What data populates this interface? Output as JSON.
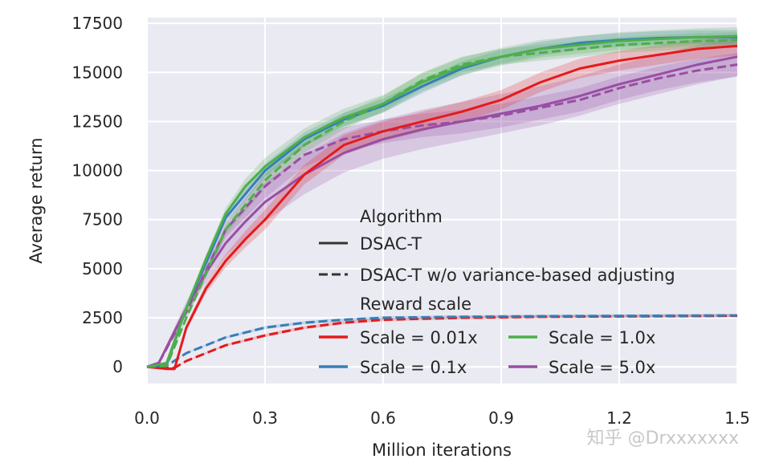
{
  "chart_data": {
    "type": "line",
    "title": "",
    "xlabel": "Million iterations",
    "ylabel": "Average return",
    "xlim": [
      0,
      1.5
    ],
    "ylim": [
      -850,
      17790
    ],
    "xticks": [
      "0.0",
      "0.3",
      "0.6",
      "0.9",
      "1.2",
      "1.5"
    ],
    "yticks": [
      "0",
      "2500",
      "5000",
      "7500",
      "10000",
      "12500",
      "15000",
      "17500"
    ],
    "grid": true,
    "background": "#eaeaf2",
    "legend": {
      "placement": "bottom-right",
      "algorithm_title": "Algorithm",
      "algorithms": [
        {
          "name": "DSAC-T",
          "style": "solid"
        },
        {
          "name": "DSAC-T w/o variance-based adjusting",
          "style": "dashed"
        }
      ],
      "scale_title": "Reward scale",
      "scales": [
        {
          "name": "Scale = 0.01x",
          "color": "#e41a1c"
        },
        {
          "name": "Scale = 1.0x",
          "color": "#4daf4a"
        },
        {
          "name": "Scale = 0.1x",
          "color": "#377eb8"
        },
        {
          "name": "Scale = 5.0x",
          "color": "#984ea3"
        }
      ]
    },
    "series": [
      {
        "scale": "Scale = 0.01x",
        "algorithm": "DSAC-T w/o variance-based adjusting",
        "color": "#e41a1c",
        "style": "dashed",
        "band": 80,
        "x": [
          0,
          0.05,
          0.07,
          0.1,
          0.2,
          0.3,
          0.4,
          0.5,
          0.6,
          0.8,
          1.0,
          1.5
        ],
        "y": [
          0,
          -50,
          -50,
          300,
          1100,
          1600,
          2000,
          2250,
          2400,
          2500,
          2550,
          2600
        ]
      },
      {
        "scale": "Scale = 0.1x",
        "algorithm": "DSAC-T w/o variance-based adjusting",
        "color": "#377eb8",
        "style": "dashed",
        "band": 80,
        "x": [
          0,
          0.05,
          0.1,
          0.2,
          0.3,
          0.4,
          0.5,
          0.6,
          0.8,
          1.0,
          1.5
        ],
        "y": [
          0,
          50,
          700,
          1500,
          2000,
          2250,
          2400,
          2500,
          2550,
          2580,
          2620
        ]
      },
      {
        "scale": "Scale = 5.0x",
        "algorithm": "DSAC-T",
        "color": "#984ea3",
        "style": "solid",
        "band": 1000,
        "x": [
          0,
          0.03,
          0.1,
          0.15,
          0.2,
          0.25,
          0.3,
          0.4,
          0.5,
          0.6,
          0.7,
          0.8,
          0.9,
          1.0,
          1.1,
          1.2,
          1.3,
          1.4,
          1.5
        ],
        "y": [
          0,
          200,
          3000,
          4800,
          6300,
          7400,
          8400,
          9800,
          10900,
          11600,
          12100,
          12500,
          12900,
          13300,
          13800,
          14400,
          14900,
          15400,
          15800
        ]
      },
      {
        "scale": "Scale = 5.0x",
        "algorithm": "DSAC-T w/o variance-based adjusting",
        "color": "#984ea3",
        "style": "dashed",
        "band": 600,
        "x": [
          0,
          0.03,
          0.1,
          0.2,
          0.3,
          0.4,
          0.5,
          0.6,
          0.7,
          0.8,
          0.9,
          1.0,
          1.1,
          1.2,
          1.3,
          1.4,
          1.5
        ],
        "y": [
          0,
          200,
          2800,
          7000,
          9200,
          10800,
          11600,
          12000,
          12300,
          12500,
          12800,
          13200,
          13600,
          14200,
          14700,
          15100,
          15400
        ]
      },
      {
        "scale": "Scale = 0.01x",
        "algorithm": "DSAC-T",
        "color": "#e41a1c",
        "style": "solid",
        "band": 500,
        "x": [
          0,
          0.05,
          0.07,
          0.1,
          0.15,
          0.2,
          0.25,
          0.3,
          0.4,
          0.5,
          0.6,
          0.7,
          0.8,
          0.9,
          1.0,
          1.1,
          1.2,
          1.3,
          1.4,
          1.5
        ],
        "y": [
          0,
          -100,
          -100,
          2000,
          4000,
          5400,
          6500,
          7500,
          9800,
          11300,
          12000,
          12500,
          13000,
          13600,
          14500,
          15200,
          15600,
          15900,
          16200,
          16350
        ]
      },
      {
        "scale": "Scale = 0.1x",
        "algorithm": "DSAC-T",
        "color": "#377eb8",
        "style": "solid",
        "band": 350,
        "x": [
          0,
          0.05,
          0.1,
          0.2,
          0.3,
          0.4,
          0.5,
          0.6,
          0.7,
          0.8,
          0.9,
          1.0,
          1.1,
          1.2,
          1.3,
          1.4,
          1.5
        ],
        "y": [
          0,
          100,
          3000,
          7600,
          10000,
          11600,
          12600,
          13300,
          14300,
          15200,
          15800,
          16200,
          16500,
          16650,
          16750,
          16800,
          16800
        ]
      },
      {
        "scale": "Scale = 1.0x",
        "algorithm": "DSAC-T w/o variance-based adjusting",
        "color": "#4daf4a",
        "style": "dashed",
        "band": 400,
        "x": [
          0,
          0.05,
          0.1,
          0.2,
          0.3,
          0.4,
          0.5,
          0.6,
          0.7,
          0.8,
          0.9,
          1.0,
          1.1,
          1.2,
          1.3,
          1.4,
          1.5
        ],
        "y": [
          0,
          50,
          2500,
          7000,
          9500,
          11300,
          12500,
          13400,
          14600,
          15400,
          15800,
          16000,
          16200,
          16400,
          16500,
          16600,
          16650
        ]
      },
      {
        "scale": "Scale = 1.0x",
        "algorithm": "DSAC-T",
        "color": "#4daf4a",
        "style": "solid",
        "band": 450,
        "x": [
          0,
          0.05,
          0.1,
          0.15,
          0.2,
          0.25,
          0.3,
          0.4,
          0.5,
          0.6,
          0.7,
          0.8,
          0.9,
          1.0,
          1.1,
          1.2,
          1.3,
          1.4,
          1.5
        ],
        "y": [
          0,
          200,
          3000,
          5500,
          7800,
          9200,
          10200,
          11700,
          12700,
          13400,
          14500,
          15300,
          15800,
          16200,
          16400,
          16600,
          16700,
          16800,
          16850
        ]
      }
    ]
  },
  "watermark": "知乎 @Drxxxxxxx"
}
